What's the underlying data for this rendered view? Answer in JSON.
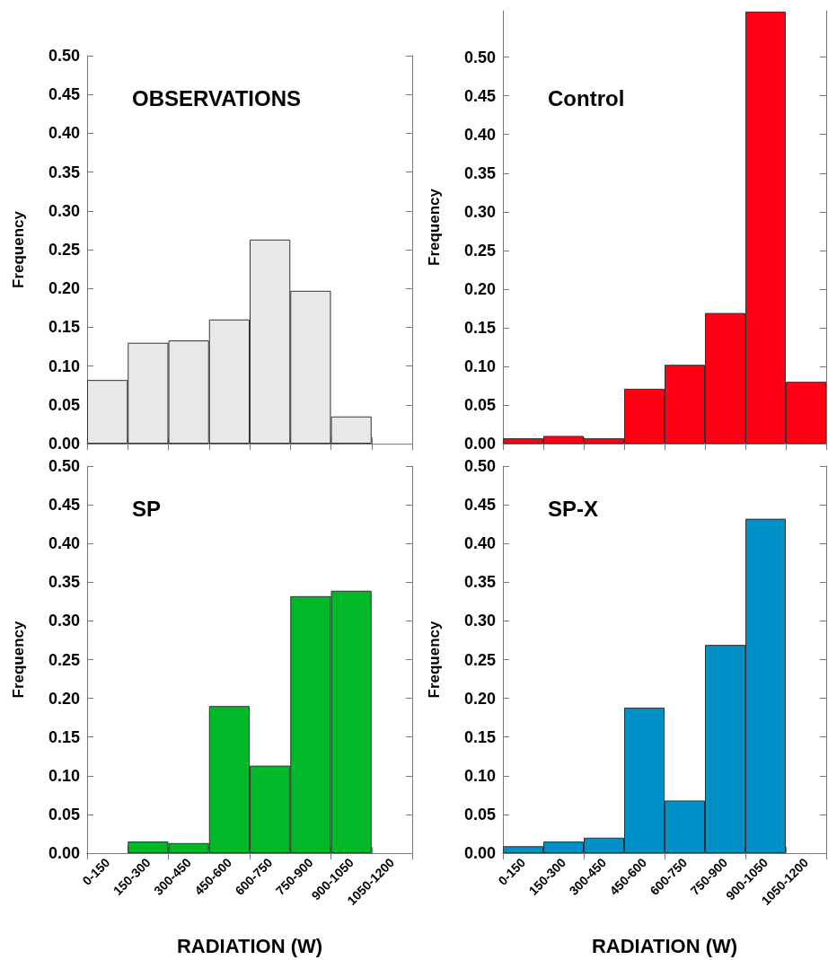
{
  "chart_data": [
    {
      "type": "bar",
      "title": "OBSERVATIONS",
      "categories": [
        null,
        null,
        null,
        null,
        null,
        null,
        null,
        null
      ],
      "values": [
        0.082,
        0.13,
        0.133,
        0.16,
        0.263,
        0.197,
        0.035,
        null
      ],
      "color": "#e8e8e8",
      "ylabel": "Frequency",
      "ylim": [
        0,
        0.5
      ],
      "yticks": [
        {
          "value": 0,
          "label": "0.00"
        },
        {
          "value": 0.05,
          "label": "0.05"
        },
        {
          "value": 0.1,
          "label": "0.10"
        },
        {
          "value": 0.15,
          "label": "0.15"
        },
        {
          "value": 0.2,
          "label": "0.20"
        },
        {
          "value": 0.25,
          "label": "0.25"
        },
        {
          "value": 0.3,
          "label": "0.30"
        },
        {
          "value": 0.35,
          "label": "0.35"
        },
        {
          "value": 0.4,
          "label": "0.40"
        },
        {
          "value": 0.45,
          "label": "0.45"
        },
        {
          "value": 0.5,
          "label": "0.50"
        }
      ],
      "tick_labels": "y",
      "grid": false
    },
    {
      "type": "bar",
      "title": "Control",
      "categories": [
        null,
        null,
        null,
        null,
        null,
        null,
        null,
        null
      ],
      "values": [
        0.007,
        0.01,
        0.007,
        0.071,
        0.102,
        0.169,
        0.559,
        0.08
      ],
      "color": "#ff0014",
      "ylabel": "Frequency",
      "ylim": [
        0,
        0.56
      ],
      "yticks": [
        {
          "value": 0,
          "label": "0.00"
        },
        {
          "value": 0.05,
          "label": "0.05"
        },
        {
          "value": 0.1,
          "label": "0.10"
        },
        {
          "value": 0.15,
          "label": "0.15"
        },
        {
          "value": 0.2,
          "label": "0.20"
        },
        {
          "value": 0.25,
          "label": "0.25"
        },
        {
          "value": 0.3,
          "label": "0.30"
        },
        {
          "value": 0.35,
          "label": "0.35"
        },
        {
          "value": 0.4,
          "label": "0.40"
        },
        {
          "value": 0.45,
          "label": "0.45"
        },
        {
          "value": 0.5,
          "label": "0.50"
        }
      ],
      "tick_labels": "y",
      "grid": false
    },
    {
      "type": "bar",
      "title": "SP",
      "categories": [
        "0-150",
        "150-300",
        "300-450",
        "450-600",
        "600-750",
        "750-900",
        "900-1050",
        "1050-1200"
      ],
      "values": [
        null,
        0.015,
        0.013,
        0.19,
        0.113,
        0.332,
        0.339,
        null
      ],
      "color": "#00b828",
      "xlabel": "RADIATION (W)",
      "ylabel": "Frequency",
      "ylim": [
        0,
        0.5
      ],
      "yticks": [
        {
          "value": 0,
          "label": "0.00"
        },
        {
          "value": 0.05,
          "label": "0.05"
        },
        {
          "value": 0.1,
          "label": "0.10"
        },
        {
          "value": 0.15,
          "label": "0.15"
        },
        {
          "value": 0.2,
          "label": "0.20"
        },
        {
          "value": 0.25,
          "label": "0.25"
        },
        {
          "value": 0.3,
          "label": "0.30"
        },
        {
          "value": 0.35,
          "label": "0.35"
        },
        {
          "value": 0.4,
          "label": "0.40"
        },
        {
          "value": 0.45,
          "label": "0.45"
        },
        {
          "value": 0.5,
          "label": "0.50"
        }
      ],
      "grid": false
    },
    {
      "type": "bar",
      "title": "SP-X",
      "categories": [
        "0-150",
        "150-300",
        "300-450",
        "450-600",
        "600-750",
        "750-900",
        "900-1050",
        "1050-1200"
      ],
      "values": [
        0.009,
        0.015,
        0.02,
        0.188,
        0.068,
        0.269,
        0.432,
        null
      ],
      "color": "#0090c8",
      "xlabel": "RADIATION (W)",
      "ylabel": "Frequency",
      "ylim": [
        0,
        0.5
      ],
      "yticks": [
        {
          "value": 0,
          "label": "0.00"
        },
        {
          "value": 0.05,
          "label": "0.05"
        },
        {
          "value": 0.1,
          "label": "0.10"
        },
        {
          "value": 0.15,
          "label": "0.15"
        },
        {
          "value": 0.2,
          "label": "0.20"
        },
        {
          "value": 0.25,
          "label": "0.25"
        },
        {
          "value": 0.3,
          "label": "0.30"
        },
        {
          "value": 0.35,
          "label": "0.35"
        },
        {
          "value": 0.4,
          "label": "0.40"
        },
        {
          "value": 0.45,
          "label": "0.45"
        },
        {
          "value": 0.5,
          "label": "0.50"
        }
      ],
      "grid": false
    }
  ]
}
